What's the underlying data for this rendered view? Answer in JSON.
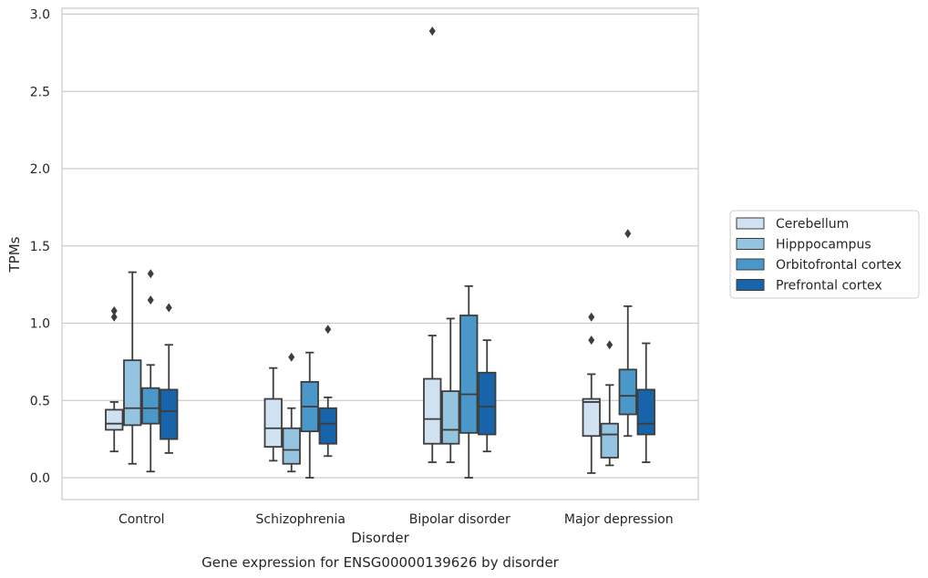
{
  "chart_data": {
    "type": "box",
    "title": "",
    "caption": "Gene expression for ENSG00000139626 by disorder",
    "xlabel": "Disorder",
    "ylabel": "TPMs",
    "ylim": [
      -0.14,
      3.04
    ],
    "yticks": [
      "0.0",
      "0.5",
      "1.0",
      "1.5",
      "2.0",
      "2.5",
      "3.0"
    ],
    "grid": "horizontal",
    "legend_position": "right",
    "categories": [
      "Control",
      "Schizophrenia",
      "Bipolar disorder",
      "Major depression"
    ],
    "series": [
      {
        "name": "Cerebellum",
        "color": "#d0e1f2",
        "boxes": [
          {
            "whisker_low": 0.17,
            "q1": 0.31,
            "median": 0.35,
            "q3": 0.44,
            "whisker_high": 0.49,
            "outliers": [
              1.04,
              1.08
            ]
          },
          {
            "whisker_low": 0.11,
            "q1": 0.2,
            "median": 0.32,
            "q3": 0.51,
            "whisker_high": 0.71,
            "outliers": []
          },
          {
            "whisker_low": 0.1,
            "q1": 0.22,
            "median": 0.38,
            "q3": 0.64,
            "whisker_high": 0.92,
            "outliers": [
              2.89
            ]
          },
          {
            "whisker_low": 0.03,
            "q1": 0.27,
            "median": 0.49,
            "q3": 0.51,
            "whisker_high": 0.67,
            "outliers": [
              0.89,
              1.04
            ]
          }
        ]
      },
      {
        "name": "Hipppocampus",
        "color": "#94c4df",
        "boxes": [
          {
            "whisker_low": 0.09,
            "q1": 0.34,
            "median": 0.45,
            "q3": 0.76,
            "whisker_high": 1.33,
            "outliers": []
          },
          {
            "whisker_low": 0.04,
            "q1": 0.09,
            "median": 0.18,
            "q3": 0.32,
            "whisker_high": 0.45,
            "outliers": [
              0.78
            ]
          },
          {
            "whisker_low": 0.1,
            "q1": 0.22,
            "median": 0.31,
            "q3": 0.56,
            "whisker_high": 1.03,
            "outliers": []
          },
          {
            "whisker_low": 0.08,
            "q1": 0.13,
            "median": 0.28,
            "q3": 0.35,
            "whisker_high": 0.6,
            "outliers": [
              0.86
            ]
          }
        ]
      },
      {
        "name": "Orbitofrontal cortex",
        "color": "#4a98c9",
        "boxes": [
          {
            "whisker_low": 0.04,
            "q1": 0.35,
            "median": 0.45,
            "q3": 0.58,
            "whisker_high": 0.73,
            "outliers": [
              1.15,
              1.32
            ]
          },
          {
            "whisker_low": 0.0,
            "q1": 0.3,
            "median": 0.46,
            "q3": 0.62,
            "whisker_high": 0.81,
            "outliers": []
          },
          {
            "whisker_low": 0.0,
            "q1": 0.29,
            "median": 0.54,
            "q3": 1.05,
            "whisker_high": 1.24,
            "outliers": []
          },
          {
            "whisker_low": 0.27,
            "q1": 0.41,
            "median": 0.53,
            "q3": 0.7,
            "whisker_high": 1.11,
            "outliers": [
              1.58
            ]
          }
        ]
      },
      {
        "name": "Prefrontal cortex",
        "color": "#1764ab",
        "boxes": [
          {
            "whisker_low": 0.16,
            "q1": 0.25,
            "median": 0.43,
            "q3": 0.57,
            "whisker_high": 0.86,
            "outliers": [
              1.1
            ]
          },
          {
            "whisker_low": 0.14,
            "q1": 0.22,
            "median": 0.35,
            "q3": 0.45,
            "whisker_high": 0.52,
            "outliers": [
              0.96
            ]
          },
          {
            "whisker_low": 0.17,
            "q1": 0.28,
            "median": 0.46,
            "q3": 0.68,
            "whisker_high": 0.89,
            "outliers": []
          },
          {
            "whisker_low": 0.1,
            "q1": 0.28,
            "median": 0.35,
            "q3": 0.57,
            "whisker_high": 0.87,
            "outliers": []
          }
        ]
      }
    ]
  }
}
